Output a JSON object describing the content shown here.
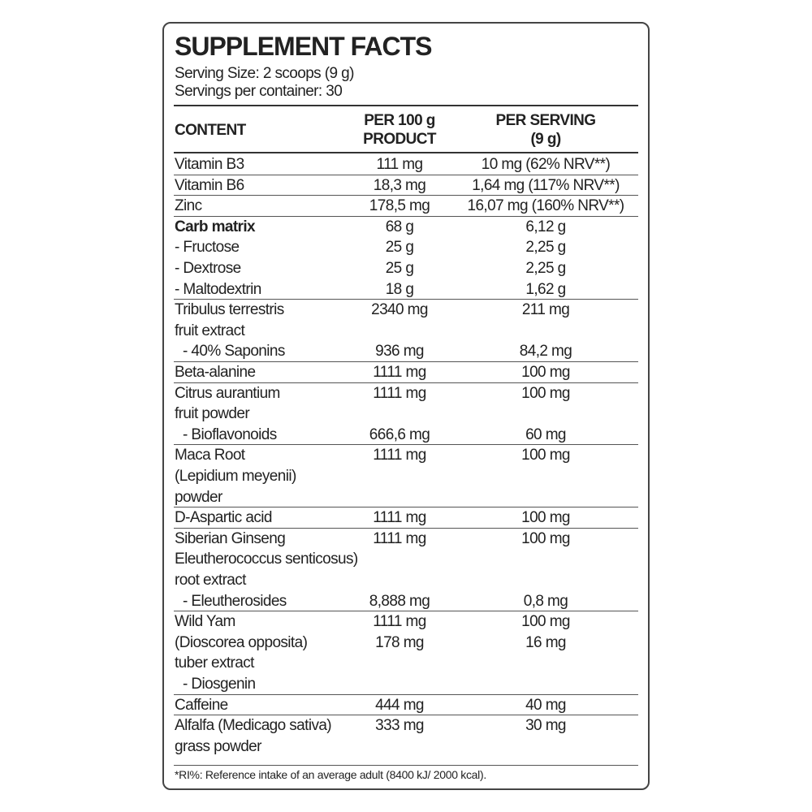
{
  "header": {
    "title": "SUPPLEMENT FACTS",
    "serving_size": "Serving Size: 2 scoops (9 g)",
    "servings_per_container": "Servings per container: 30"
  },
  "columns": {
    "content": "CONTENT",
    "per_100g": [
      "PER 100 g",
      "PRODUCT"
    ],
    "per_serving": [
      "PER SERVING",
      "(9 g)"
    ]
  },
  "groups": [
    [
      {
        "content": "Vitamin B3",
        "per_100g": "111 mg",
        "per_serving": "10 mg  (62% NRV**)"
      }
    ],
    [
      {
        "content": "Vitamin B6",
        "per_100g": "18,3 mg",
        "per_serving": "1,64 mg  (117% NRV**)"
      }
    ],
    [
      {
        "content": "Zinc",
        "per_100g": "178,5 mg",
        "per_serving": "16,07 mg  (160% NRV**)"
      }
    ],
    [
      {
        "content": "Carb matrix",
        "per_100g": "68 g",
        "per_serving": "6,12 g",
        "bold": true
      },
      {
        "content": "- Fructose",
        "per_100g": "25 g",
        "per_serving": "2,25 g"
      },
      {
        "content": "- Dextrose",
        "per_100g": "25 g",
        "per_serving": "2,25 g"
      },
      {
        "content": "- Maltodextrin",
        "per_100g": "18 g",
        "per_serving": "1,62 g"
      }
    ],
    [
      {
        "content": "Tribulus terrestris",
        "per_100g": "2340 mg",
        "per_serving": "211 mg"
      },
      {
        "content": "fruit extract"
      },
      {
        "content": "- 40% Saponins",
        "per_100g": "936 mg",
        "per_serving": "84,2 mg",
        "indent": true
      }
    ],
    [
      {
        "content": "Beta-alanine",
        "per_100g": "1111 mg",
        "per_serving": "100 mg"
      }
    ],
    [
      {
        "content": "Citrus aurantium",
        "per_100g": "1111 mg",
        "per_serving": "100 mg"
      },
      {
        "content": "fruit powder"
      },
      {
        "content": "- Bioflavonoids",
        "per_100g": "666,6 mg",
        "per_serving": "60 mg",
        "indent": true
      }
    ],
    [
      {
        "content": "Maca Root",
        "per_100g": "1111 mg",
        "per_serving": "100 mg"
      },
      {
        "content": "(Lepidium meyenii)"
      },
      {
        "content": "powder"
      }
    ],
    [
      {
        "content": "D-Aspartic acid",
        "per_100g": "1111 mg",
        "per_serving": "100 mg"
      }
    ],
    [
      {
        "content": "Siberian Ginseng",
        "per_100g": "1111 mg",
        "per_serving": "100 mg"
      },
      {
        "content": "Eleutherococcus senticosus)"
      },
      {
        "content": "root extract"
      },
      {
        "content": "- Eleutherosides",
        "per_100g": "8,888 mg",
        "per_serving": "0,8 mg",
        "indent": true
      }
    ],
    [
      {
        "content": "Wild Yam",
        "per_100g": "1111 mg",
        "per_serving": "100 mg"
      },
      {
        "content": "(Dioscorea opposita)",
        "per_100g": "178 mg",
        "per_serving": "16 mg"
      },
      {
        "content": "tuber extract"
      },
      {
        "content": "- Diosgenin",
        "indent": true
      }
    ],
    [
      {
        "content": "Caffeine",
        "per_100g": "444 mg",
        "per_serving": "40 mg"
      }
    ],
    [
      {
        "content": "Alfalfa (Medicago sativa)",
        "per_100g": "333 mg",
        "per_serving": "30 mg"
      },
      {
        "content": "grass powder"
      }
    ]
  ],
  "footnote": "*RI%: Reference intake of an average adult (8400 kJ/ 2000 kcal)."
}
